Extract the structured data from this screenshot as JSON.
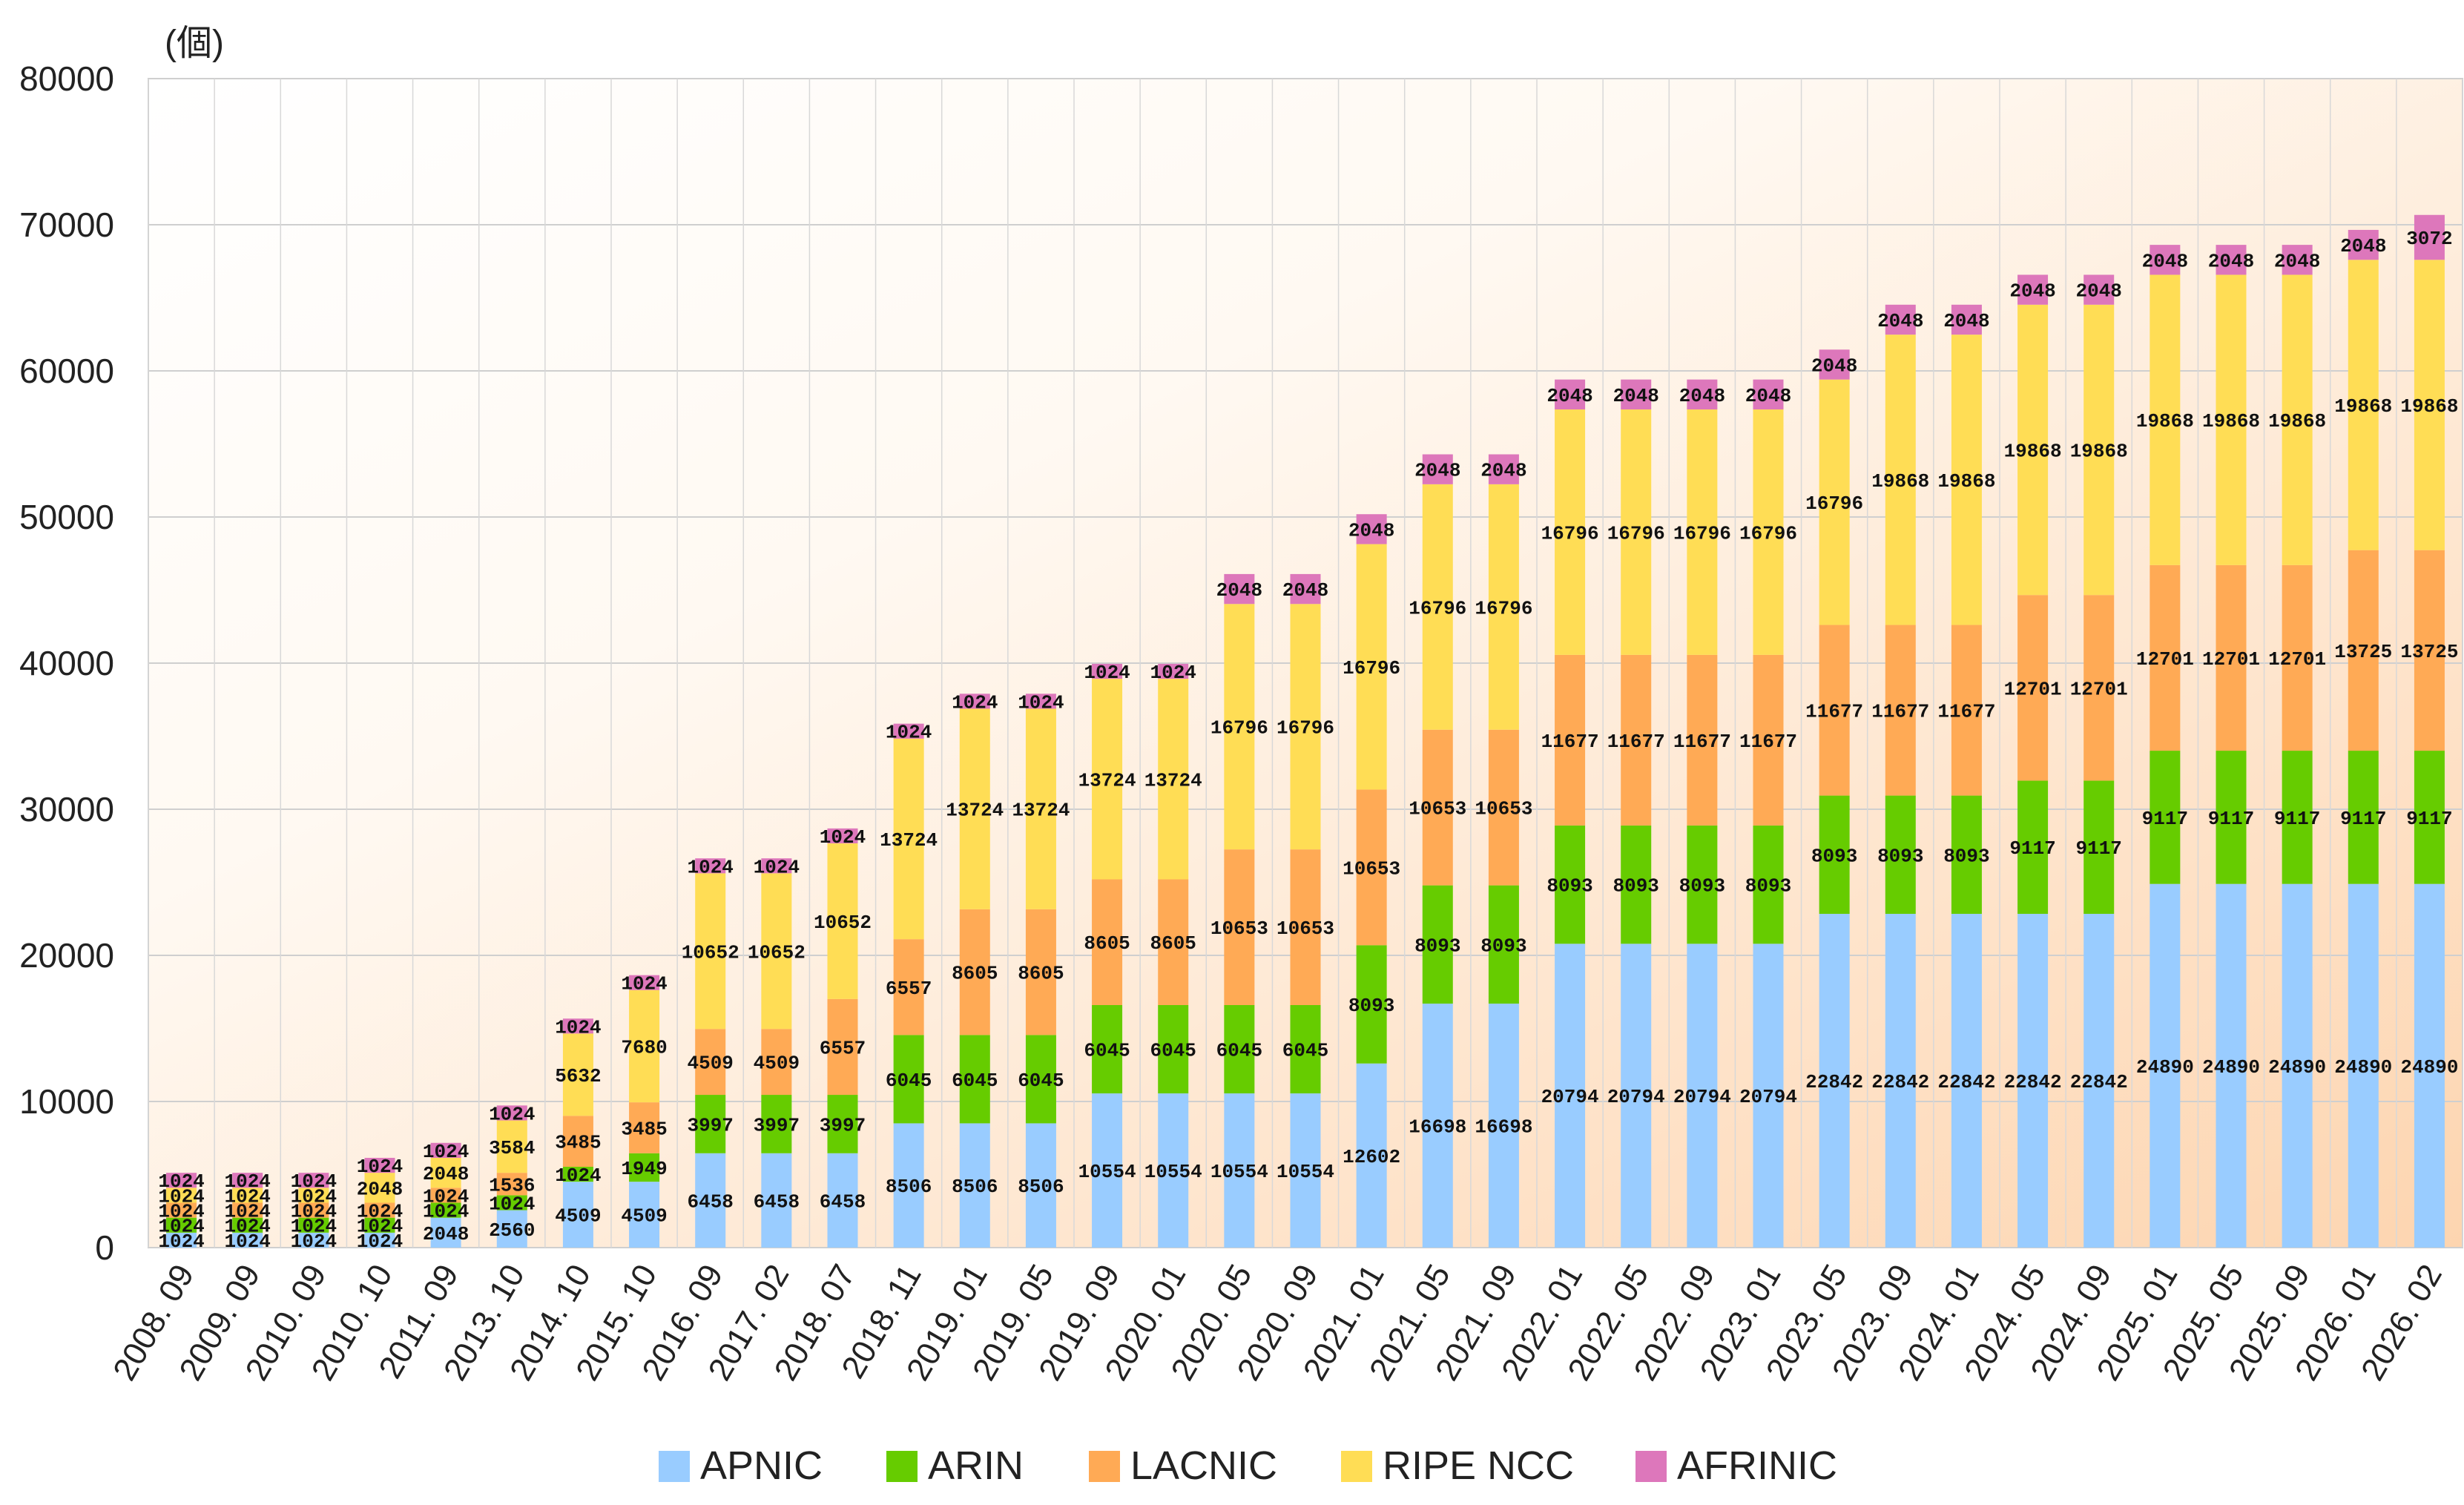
{
  "chart_data": {
    "type": "bar",
    "stacked": true,
    "unit_label": "(個)",
    "title": "",
    "xlabel": "",
    "ylabel": "",
    "ylim": [
      0,
      80000
    ],
    "yticks": [
      0,
      10000,
      20000,
      30000,
      40000,
      50000,
      60000,
      70000,
      80000
    ],
    "grid": true,
    "legend_position": "bottom",
    "categories": [
      "2008. 09",
      "2009. 09",
      "2010. 09",
      "2010. 10",
      "2011. 09",
      "2013. 10",
      "2014. 10",
      "2015. 10",
      "2016. 09",
      "2017. 02",
      "2018. 07",
      "2018. 11",
      "2019. 01",
      "2019. 05",
      "2019. 09",
      "2020. 01",
      "2020. 05",
      "2020. 09",
      "2021. 01",
      "2021. 05",
      "2021. 09",
      "2022. 01",
      "2022. 05",
      "2022. 09",
      "2023. 01",
      "2023. 05",
      "2023. 09",
      "2024. 01",
      "2024. 05",
      "2024. 09",
      "2025. 01",
      "2025. 05",
      "2025. 09",
      "2026. 01",
      "2026. 02"
    ],
    "series": [
      {
        "name": "APNIC",
        "color": "#99ccff",
        "values": [
          1024,
          1024,
          1024,
          1024,
          2048,
          2560,
          4509,
          4509,
          6458,
          6458,
          6458,
          8506,
          8506,
          8506,
          10554,
          10554,
          10554,
          10554,
          12602,
          16698,
          16698,
          20794,
          20794,
          20794,
          20794,
          22842,
          22842,
          22842,
          22842,
          22842,
          24890,
          24890,
          24890,
          24890,
          24890
        ]
      },
      {
        "name": "ARIN",
        "color": "#66cc00",
        "values": [
          1024,
          1024,
          1024,
          1024,
          1024,
          1024,
          1024,
          1949,
          3997,
          3997,
          3997,
          6045,
          6045,
          6045,
          6045,
          6045,
          6045,
          6045,
          8093,
          8093,
          8093,
          8093,
          8093,
          8093,
          8093,
          8093,
          8093,
          8093,
          9117,
          9117,
          9117,
          9117,
          9117,
          9117,
          9117
        ]
      },
      {
        "name": "LACNIC",
        "color": "#ffaa55",
        "values": [
          1024,
          1024,
          1024,
          1024,
          1024,
          1536,
          3485,
          3485,
          4509,
          4509,
          6557,
          6557,
          8605,
          8605,
          8605,
          8605,
          10653,
          10653,
          10653,
          10653,
          10653,
          11677,
          11677,
          11677,
          11677,
          11677,
          11677,
          11677,
          12701,
          12701,
          12701,
          12701,
          12701,
          13725,
          13725
        ]
      },
      {
        "name": "RIPE NCC",
        "color": "#ffdd55",
        "values": [
          1024,
          1024,
          1024,
          2048,
          2048,
          3584,
          5632,
          7680,
          10652,
          10652,
          10652,
          13724,
          13724,
          13724,
          13724,
          13724,
          16796,
          16796,
          16796,
          16796,
          16796,
          16796,
          16796,
          16796,
          16796,
          16796,
          19868,
          19868,
          19868,
          19868,
          19868,
          19868,
          19868,
          19868,
          19868
        ]
      },
      {
        "name": "AFRINIC",
        "color": "#dd77bb",
        "values": [
          1024,
          1024,
          1024,
          1024,
          1024,
          1024,
          1024,
          1024,
          1024,
          1024,
          1024,
          1024,
          1024,
          1024,
          1024,
          1024,
          2048,
          2048,
          2048,
          2048,
          2048,
          2048,
          2048,
          2048,
          2048,
          2048,
          2048,
          2048,
          2048,
          2048,
          2048,
          2048,
          2048,
          2048,
          3072
        ]
      }
    ]
  }
}
